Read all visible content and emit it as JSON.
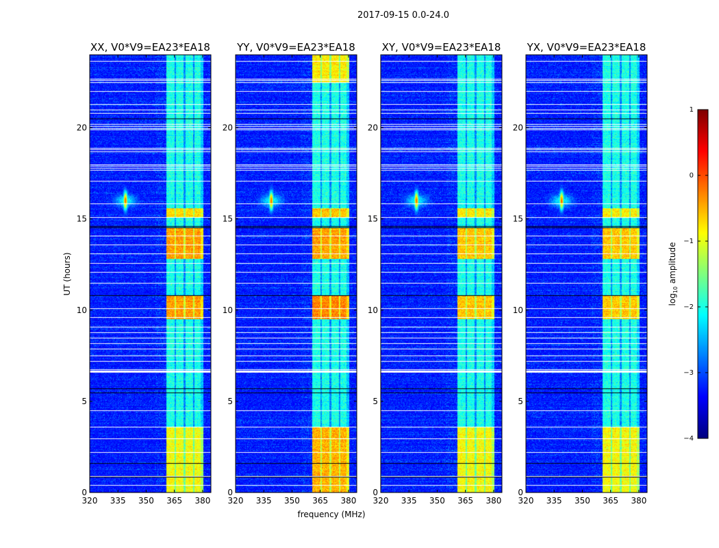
{
  "chart_data": {
    "type": "heatmap",
    "title": "2017-09-15 0.0-24.0",
    "xlabel": "frequency (MHz)",
    "ylabel": "UT (hours)",
    "xlim": [
      320,
      384.4
    ],
    "ylim": [
      0,
      24
    ],
    "xticks": [
      320,
      335,
      350,
      365,
      380
    ],
    "yticks": [
      0,
      5,
      10,
      15,
      20
    ],
    "panels": [
      {
        "title": "XX, V0*V9=EA23*EA18",
        "hot_intervals": [
          [
            0,
            3.6,
            -0.9
          ],
          [
            9.5,
            10.8,
            -0.4
          ],
          [
            12.8,
            14.5,
            -0.4
          ],
          [
            15.1,
            15.6,
            -0.7
          ]
        ]
      },
      {
        "title": "YY, V0*V9=EA23*EA18",
        "hot_intervals": [
          [
            0,
            3.6,
            -0.5
          ],
          [
            9.5,
            10.8,
            -0.3
          ],
          [
            12.8,
            14.5,
            -0.4
          ],
          [
            15.1,
            15.6,
            -0.6
          ],
          [
            22.5,
            24,
            -0.8
          ]
        ]
      },
      {
        "title": "XY, V0*V9=EA23*EA18",
        "hot_intervals": [
          [
            0,
            3.6,
            -0.9
          ],
          [
            9.5,
            10.8,
            -0.6
          ],
          [
            12.8,
            14.5,
            -0.6
          ],
          [
            15.1,
            15.6,
            -0.8
          ]
        ]
      },
      {
        "title": "YX, V0*V9=EA23*EA18",
        "hot_intervals": [
          [
            0,
            3.6,
            -0.9
          ],
          [
            9.5,
            10.8,
            -0.6
          ],
          [
            12.8,
            14.5,
            -0.6
          ],
          [
            15.1,
            15.6,
            -0.8
          ]
        ]
      }
    ],
    "background_level": -3.3,
    "band_mhz": [
      360.7,
      380.4
    ],
    "band_gaps_mhz": [
      365.5,
      370.5,
      375.3
    ],
    "band_default_level": -2.0,
    "rfi_spike": {
      "freq_mhz": 339,
      "time_h": 16.0,
      "peak_level": -0.1
    },
    "flagged_white_hours": [
      23.66,
      22.7,
      22.6,
      22.5,
      22.0,
      21.3,
      21.0,
      20.8,
      20.2,
      20.1,
      20.0,
      19.9,
      18.9,
      18.8,
      18.7,
      18.0,
      17.9,
      17.8,
      17.7,
      17.1,
      15.85,
      15.1,
      14.1,
      13.6,
      13.1,
      12.6,
      12.1,
      11.5,
      10.1,
      9.6,
      9.1,
      8.8,
      8.5,
      8.2,
      7.9,
      7.5,
      7.2,
      6.75,
      6.7,
      6.65,
      6.6,
      4.5,
      3.6,
      2.96,
      2.2,
      0.9,
      0.4
    ],
    "flagged_black_hours": [
      20.5,
      14.6,
      14.55,
      10.8,
      5.7,
      5.5,
      1.6,
      0.85
    ],
    "colorbar": {
      "label_prefix": "log",
      "label_sub": "10",
      "label_suffix": " amplitude",
      "range": [
        -4,
        1
      ],
      "ticks": [
        1,
        0,
        -1,
        -2,
        -3,
        -4
      ],
      "tick_labels": [
        "1",
        "0",
        "−1",
        "−2",
        "−3",
        "−4"
      ]
    }
  }
}
